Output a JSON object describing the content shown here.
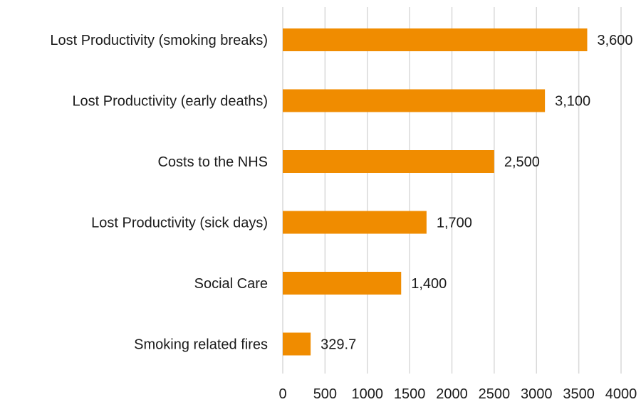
{
  "chart_data": {
    "type": "bar",
    "orientation": "horizontal",
    "title": "",
    "xlabel": "",
    "ylabel": "",
    "categories": [
      "Lost Productivity (smoking breaks)",
      "Lost Productivity (early deaths)",
      "Costs to the NHS",
      "Lost Productivity (sick days)",
      "Social Care",
      "Smoking related fires"
    ],
    "values": [
      3600,
      3100,
      2500,
      1700,
      1400,
      329.7
    ],
    "data_labels": [
      "3,600",
      "3,100",
      "2,500",
      "1,700",
      "1,400",
      "329.7"
    ],
    "xlim": [
      0,
      4000
    ],
    "xticks": [
      0,
      500,
      1000,
      1500,
      2000,
      2500,
      3000,
      3500,
      4000
    ],
    "grid": "vertical",
    "legend": "none",
    "bar_color": "#F08C00"
  }
}
